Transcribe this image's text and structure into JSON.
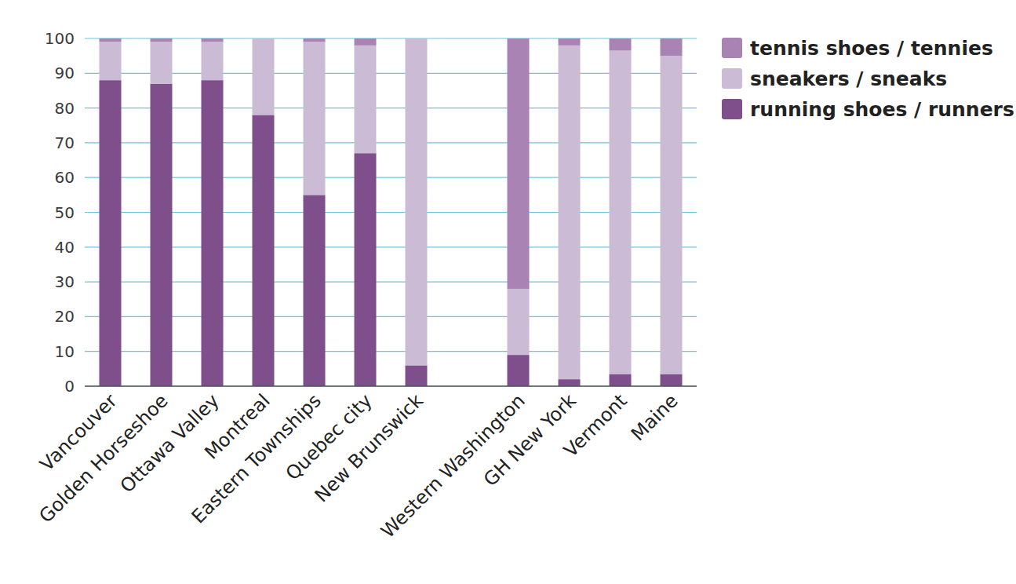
{
  "chart_data": {
    "type": "bar",
    "stacked": true,
    "grid": true,
    "legend": "right",
    "categories": [
      "Vancouver",
      "Golden Horseshoe",
      "Ottawa Valley",
      "Montreal",
      "Eastern Townships",
      "Quebec city",
      "New Brunswick",
      null,
      "Western Washington",
      "GH New York",
      "Vermont",
      "Maine"
    ],
    "series": [
      {
        "name": "running shoes / runners",
        "color": "#7f4f8c",
        "values": [
          88,
          87,
          88,
          78,
          55,
          67,
          6,
          null,
          9,
          2,
          3.5,
          3.5
        ]
      },
      {
        "name": "sneakers / sneaks",
        "color": "#cbbbd4",
        "values": [
          11,
          12,
          11,
          22,
          44,
          31,
          94,
          null,
          19,
          96,
          93,
          91.5
        ]
      },
      {
        "name": "tennis shoes / tennies",
        "color": "#a883b4",
        "values": [
          1,
          1,
          1,
          0,
          1,
          2,
          0,
          null,
          72,
          2,
          3.5,
          5
        ]
      }
    ],
    "ylim": [
      0,
      100
    ],
    "yticks": [
      0,
      10,
      20,
      30,
      40,
      50,
      60,
      70,
      80,
      90,
      100
    ]
  }
}
